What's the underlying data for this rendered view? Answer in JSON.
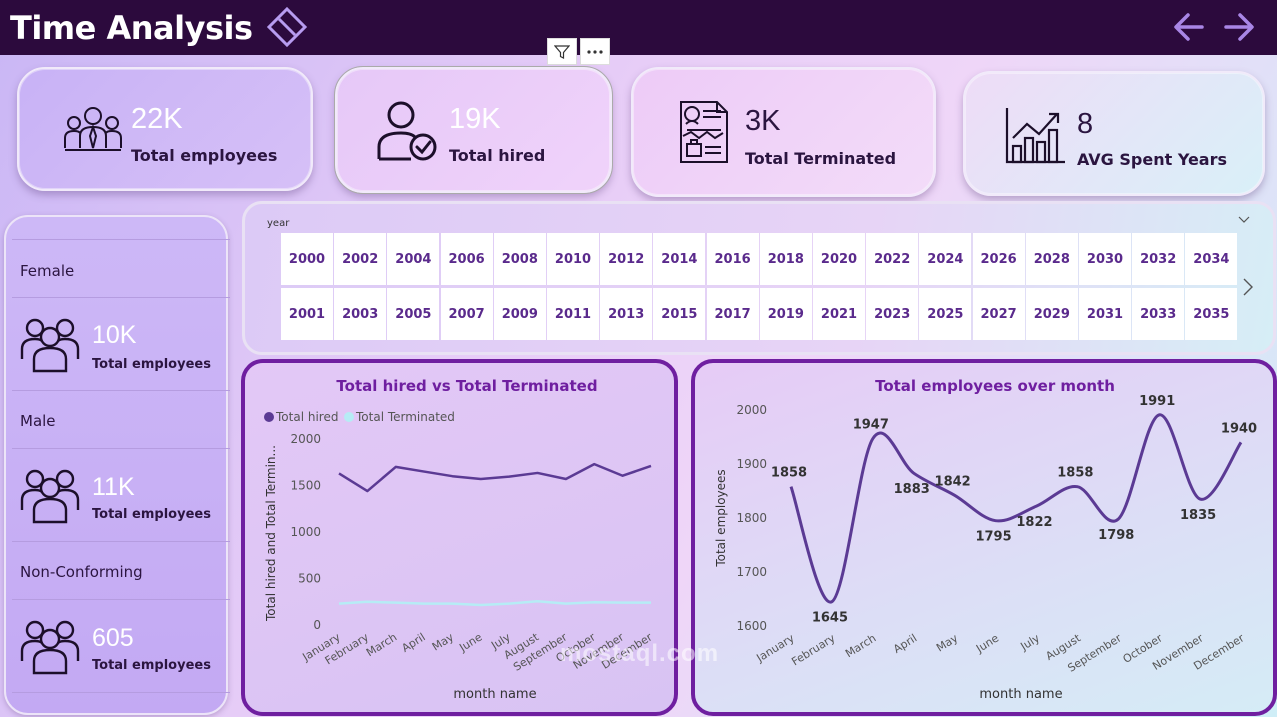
{
  "header": {
    "title": "Time Analysis"
  },
  "colors": {
    "topbar": "#2c0a3d",
    "accent": "#6f1fa0",
    "hired_line": "#5b3a94",
    "terminated_line": "#b6ecf5"
  },
  "kpis": [
    {
      "value": "22K",
      "label": "Total employees",
      "icon": "team-icon"
    },
    {
      "value": "19K",
      "label": "Total hired",
      "icon": "user-check-icon"
    },
    {
      "value": "3K",
      "label": "Total Terminated",
      "icon": "termination-document-icon"
    },
    {
      "value": "8",
      "label": "AVG Spent Years",
      "icon": "growth-chart-icon"
    }
  ],
  "gender_panel": [
    {
      "label": "Female",
      "value": "10K",
      "sub": "Total employees"
    },
    {
      "label": "Male",
      "value": "11K",
      "sub": "Total employees"
    },
    {
      "label": "Non-Conforming",
      "value": "605",
      "sub": "Total employees"
    }
  ],
  "slicer": {
    "title": "year",
    "row1": [
      "2000",
      "2002",
      "2004",
      "2006",
      "2008",
      "2010",
      "2012",
      "2014",
      "2016",
      "2018",
      "2020",
      "2022",
      "2024",
      "2026",
      "2028",
      "2030",
      "2032",
      "2034"
    ],
    "row2": [
      "2001",
      "2003",
      "2005",
      "2007",
      "2009",
      "2011",
      "2013",
      "2015",
      "2017",
      "2019",
      "2021",
      "2023",
      "2025",
      "2027",
      "2029",
      "2031",
      "2033",
      "2035"
    ]
  },
  "watermark": "mostaql.com",
  "chart_data": [
    {
      "type": "line",
      "title": "Total hired vs Total Terminated",
      "xlabel": "month name",
      "ylabel": "Total hired and Total Termin...",
      "categories": [
        "January",
        "February",
        "March",
        "April",
        "May",
        "June",
        "July",
        "August",
        "September",
        "October",
        "November",
        "December"
      ],
      "series": [
        {
          "name": "Total hired",
          "values": [
            1630,
            1440,
            1700,
            1650,
            1600,
            1570,
            1595,
            1635,
            1570,
            1730,
            1605,
            1710
          ]
        },
        {
          "name": "Total Terminated",
          "values": [
            230,
            250,
            240,
            230,
            230,
            215,
            230,
            255,
            230,
            245,
            240,
            240
          ]
        }
      ],
      "ylim": [
        0,
        2000
      ],
      "yticks": [
        "0",
        "500",
        "1000",
        "1500",
        "2000"
      ],
      "legend": "top-left"
    },
    {
      "type": "line",
      "title": "Total employees over month",
      "xlabel": "month name",
      "ylabel": "Total employees",
      "categories": [
        "January",
        "February",
        "March",
        "April",
        "May",
        "June",
        "July",
        "August",
        "September",
        "October",
        "November",
        "December"
      ],
      "series": [
        {
          "name": "Total employees",
          "values": [
            1858,
            1645,
            1947,
            1883,
            1842,
            1795,
            1822,
            1858,
            1798,
            1991,
            1835,
            1940
          ]
        }
      ],
      "data_labels": [
        "1858",
        "1645",
        "1947",
        "1883",
        "1842",
        "1795",
        "1822",
        "1858",
        "1798",
        "1991",
        "1835",
        "1940"
      ],
      "ylim": [
        1600,
        2000
      ],
      "yticks": [
        "1600",
        "1700",
        "1800",
        "1900",
        "2000"
      ]
    }
  ]
}
